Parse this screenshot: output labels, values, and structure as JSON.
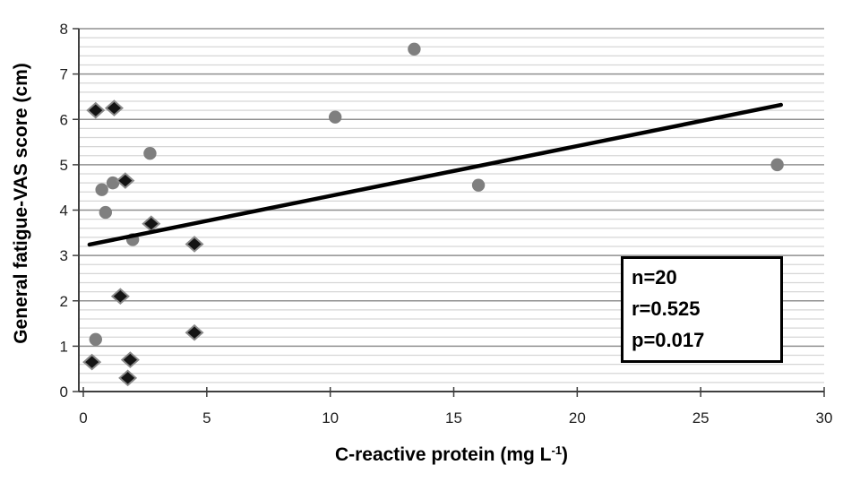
{
  "chart_data": {
    "type": "scatter",
    "title": "",
    "xlabel": "C-reactive protein (mg L-1)",
    "xlabel_parts": {
      "pre": "C-reactive protein (mg L",
      "sup": "-1",
      "post": ")"
    },
    "ylabel": "General fatigue-VAS score (cm)",
    "x_axis": {
      "min": 0,
      "max": 30,
      "tick_step": 5,
      "ticks": [
        0,
        5,
        10,
        15,
        20,
        25,
        30
      ]
    },
    "y_axis": {
      "min": 0,
      "max": 8,
      "tick_step": 1,
      "minor_step": 0.2,
      "ticks": [
        0,
        1,
        2,
        3,
        4,
        5,
        6,
        7,
        8
      ]
    },
    "grid": {
      "horizontal_major": true,
      "horizontal_minor": true,
      "vertical": false
    },
    "legend_position": "none",
    "series": [
      {
        "name": "circle-markers",
        "marker": "circle",
        "points": [
          {
            "x": 0.5,
            "y": 1.15
          },
          {
            "x": 0.75,
            "y": 4.45
          },
          {
            "x": 1.2,
            "y": 4.6
          },
          {
            "x": 0.9,
            "y": 3.95
          },
          {
            "x": 2.0,
            "y": 3.35
          },
          {
            "x": 2.7,
            "y": 5.25
          },
          {
            "x": 10.2,
            "y": 6.05
          },
          {
            "x": 13.4,
            "y": 7.55
          },
          {
            "x": 16.0,
            "y": 4.55
          },
          {
            "x": 28.1,
            "y": 5.0
          }
        ]
      },
      {
        "name": "diamond-markers",
        "marker": "diamond",
        "points": [
          {
            "x": 0.5,
            "y": 6.2
          },
          {
            "x": 1.25,
            "y": 6.25
          },
          {
            "x": 1.7,
            "y": 4.65
          },
          {
            "x": 2.75,
            "y": 3.7
          },
          {
            "x": 4.5,
            "y": 3.25
          },
          {
            "x": 1.5,
            "y": 2.1
          },
          {
            "x": 0.35,
            "y": 0.65
          },
          {
            "x": 1.9,
            "y": 0.7
          },
          {
            "x": 1.8,
            "y": 0.3
          },
          {
            "x": 4.5,
            "y": 1.3
          }
        ]
      }
    ],
    "trendline": {
      "x1": 0.25,
      "y1": 3.24,
      "x2": 28.25,
      "y2": 6.32
    },
    "annotation_box": {
      "lines": [
        "n=20",
        "r=0.525",
        "p=0.017"
      ]
    },
    "colors": {
      "background": "#ffffff",
      "grid_minor": "#d6d6d6",
      "grid_major": "#909090",
      "axis_line": "#3f3f3f",
      "tick_label": "#1f1f1f",
      "trendline": "#000000",
      "circle_fill": "#7f7f7f",
      "diamond_fill": "#141414",
      "diamond_outline": "#8a8a8a"
    }
  }
}
